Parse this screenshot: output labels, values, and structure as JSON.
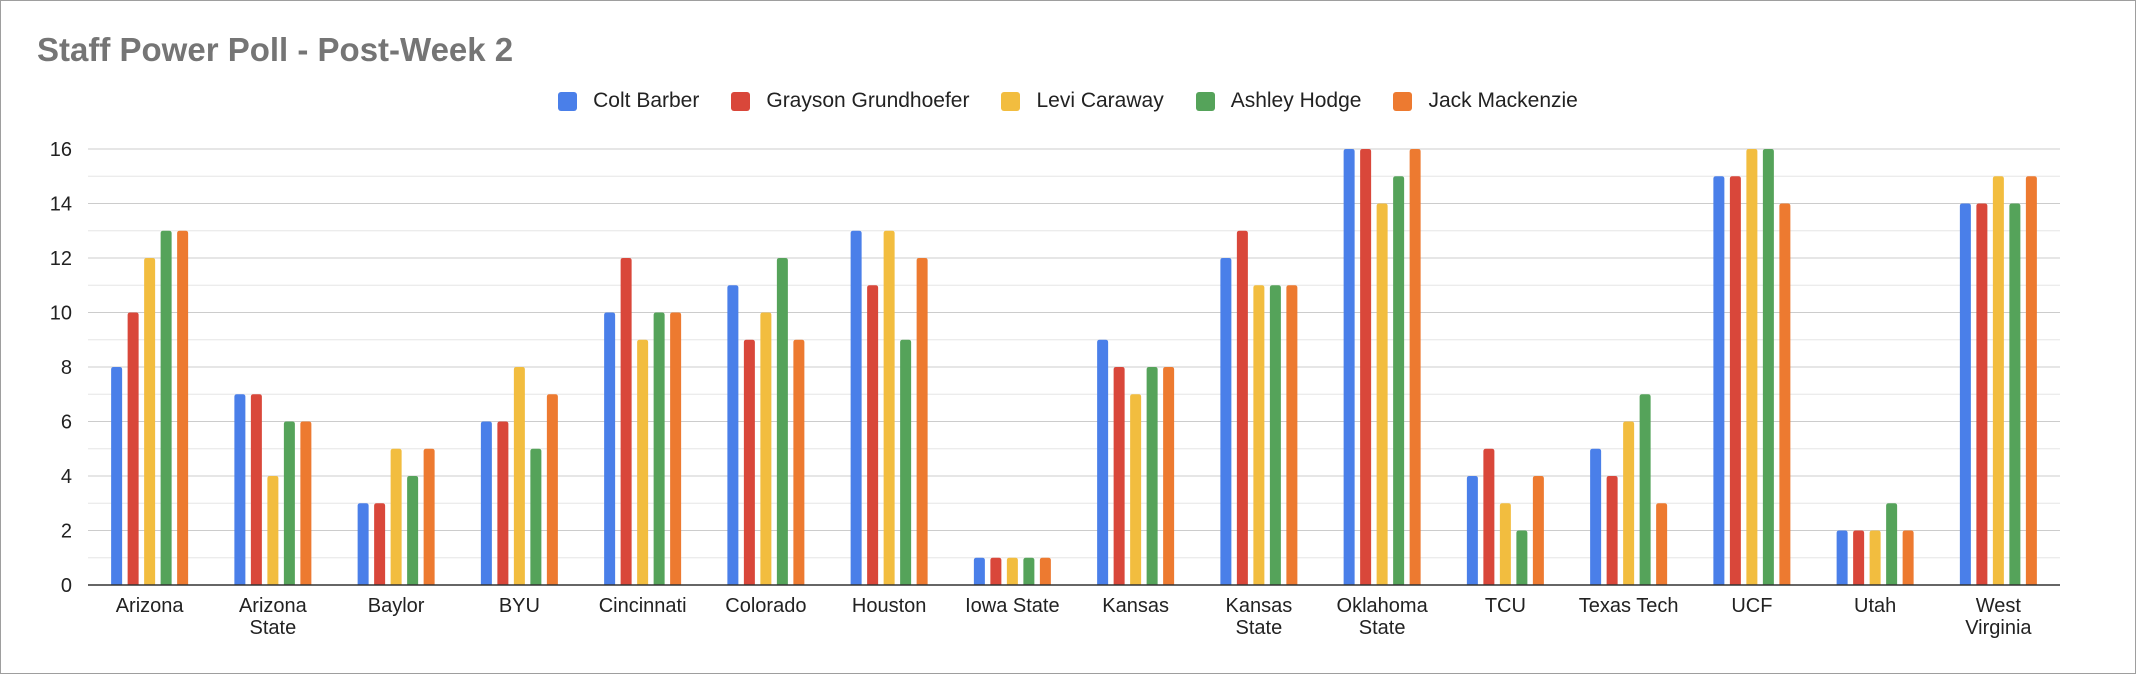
{
  "chart_data": {
    "type": "bar",
    "title": "Staff Power Poll - Post-Week 2",
    "xlabel": "",
    "ylabel": "",
    "ylim": [
      0,
      16
    ],
    "yticks": [
      0,
      2,
      4,
      6,
      8,
      10,
      12,
      14,
      16
    ],
    "grid": true,
    "legend_position": "top-center",
    "categories": [
      [
        "Arizona"
      ],
      [
        "Arizona",
        "State"
      ],
      [
        "Baylor"
      ],
      [
        "BYU"
      ],
      [
        "Cincinnati"
      ],
      [
        "Colorado"
      ],
      [
        "Houston"
      ],
      [
        "Iowa State"
      ],
      [
        "Kansas"
      ],
      [
        "Kansas",
        "State"
      ],
      [
        "Oklahoma",
        "State"
      ],
      [
        "TCU"
      ],
      [
        "Texas Tech"
      ],
      [
        "UCF"
      ],
      [
        "Utah"
      ],
      [
        "West",
        "Virginia"
      ]
    ],
    "series": [
      {
        "name": "Colt Barber",
        "color": "#4a7fe9",
        "values": [
          8,
          7,
          3,
          6,
          10,
          11,
          13,
          1,
          9,
          12,
          16,
          4,
          5,
          15,
          2,
          14
        ]
      },
      {
        "name": "Grayson Grundhoefer",
        "color": "#d9473a",
        "values": [
          10,
          7,
          3,
          6,
          12,
          9,
          11,
          1,
          8,
          13,
          16,
          5,
          4,
          15,
          2,
          14
        ]
      },
      {
        "name": "Levi Caraway",
        "color": "#f2bd3f",
        "values": [
          12,
          4,
          5,
          8,
          9,
          10,
          13,
          1,
          7,
          11,
          14,
          3,
          6,
          16,
          2,
          15
        ]
      },
      {
        "name": "Ashley Hodge",
        "color": "#55a35a",
        "values": [
          13,
          6,
          4,
          5,
          10,
          12,
          9,
          1,
          8,
          11,
          15,
          2,
          7,
          16,
          3,
          14
        ]
      },
      {
        "name": "Jack Mackenzie",
        "color": "#ed7a30",
        "values": [
          13,
          6,
          5,
          7,
          10,
          9,
          12,
          1,
          8,
          11,
          16,
          4,
          3,
          14,
          2,
          15
        ]
      }
    ]
  }
}
